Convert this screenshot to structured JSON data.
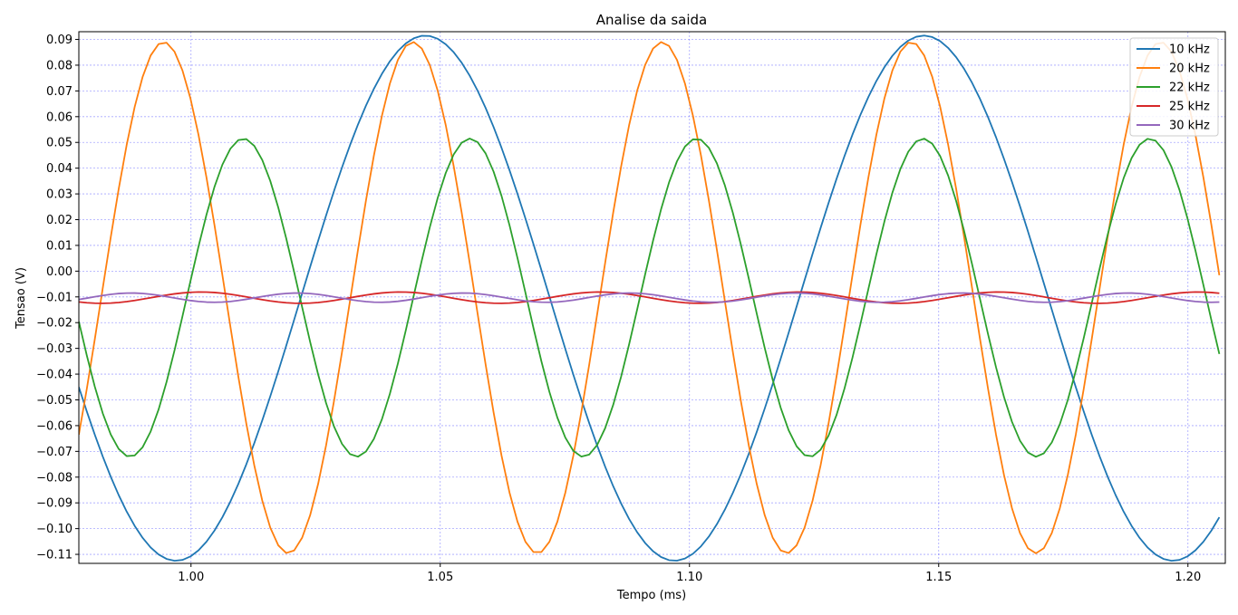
{
  "chart_data": {
    "type": "line",
    "title": "Analise da saida",
    "xlabel": "Tempo (ms)",
    "ylabel": "Tensao (V)",
    "xlim": [
      0.9775,
      1.2075
    ],
    "ylim": [
      -0.1135,
      0.093
    ],
    "xticks": [
      1.0,
      1.05,
      1.1,
      1.15,
      1.2
    ],
    "xtick_labels": [
      "1.00",
      "1.05",
      "1.10",
      "1.15",
      "1.20"
    ],
    "yticks": [
      0.09,
      0.08,
      0.07,
      0.06,
      0.05,
      0.04,
      0.03,
      0.02,
      0.01,
      0.0,
      -0.01,
      -0.02,
      -0.03,
      -0.04,
      -0.05,
      -0.06,
      -0.07,
      -0.08,
      -0.09,
      -0.1,
      -0.11
    ],
    "ytick_labels": [
      "0.09",
      "0.08",
      "0.07",
      "0.06",
      "0.05",
      "0.04",
      "0.03",
      "0.02",
      "0.01",
      "0.00",
      "−0.01",
      "−0.02",
      "−0.03",
      "−0.04",
      "−0.05",
      "−0.06",
      "−0.07",
      "−0.08",
      "−0.09",
      "−0.10",
      "−0.11"
    ],
    "grid": true,
    "legend_position": "top-right",
    "series": [
      {
        "name": "10 kHz",
        "color": "#1f77b4",
        "wave": {
          "offset": -0.0105,
          "amplitude": 0.102,
          "frequency_khz": 10,
          "peak_ms": 1.047
        }
      },
      {
        "name": "20 kHz",
        "color": "#ff7f0e",
        "wave": {
          "offset": -0.0103,
          "amplitude": 0.0993,
          "frequency_khz": 20,
          "peak_ms": 0.9945
        }
      },
      {
        "name": "22 kHz",
        "color": "#2ca02c",
        "wave": {
          "offset": -0.0103,
          "amplitude": 0.0618,
          "frequency_khz": 22,
          "peak_ms": 1.0105
        }
      },
      {
        "name": "25 kHz",
        "color": "#d62728",
        "wave": {
          "offset": -0.0103,
          "amplitude": 0.0022,
          "frequency_khz": 25,
          "peak_ms": 1.002
        }
      },
      {
        "name": "30 kHz",
        "color": "#9467bd",
        "wave": {
          "offset": -0.0103,
          "amplitude": 0.0018,
          "frequency_khz": 30,
          "peak_ms": 0.988
        }
      }
    ]
  }
}
